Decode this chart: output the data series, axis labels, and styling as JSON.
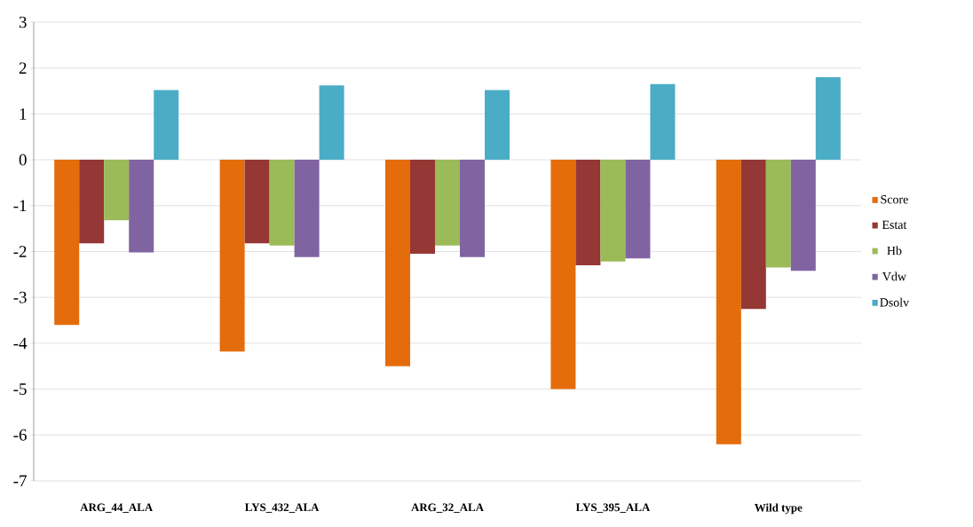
{
  "chart_data": {
    "type": "bar",
    "categories": [
      "ARG_44_ALA",
      "LYS_432_ALA",
      "ARG_32_ALA",
      "LYS_395_ALA",
      "Wild type"
    ],
    "series": [
      {
        "name": "Score",
        "color": "#e46c0a",
        "values": [
          -3.6,
          -4.18,
          -4.5,
          -5.0,
          -6.2
        ]
      },
      {
        "name": "Estat",
        "color": "#953735",
        "values": [
          -1.82,
          -1.82,
          -2.05,
          -2.3,
          -3.25
        ]
      },
      {
        "name": "Hb",
        "color": "#9bbb59",
        "values": [
          -1.32,
          -1.87,
          -1.87,
          -2.22,
          -2.35
        ]
      },
      {
        "name": "Vdw",
        "color": "#8064a2",
        "values": [
          -2.02,
          -2.12,
          -2.12,
          -2.15,
          -2.42
        ]
      },
      {
        "name": "Dsolv",
        "color": "#4bacc6",
        "values": [
          1.52,
          1.62,
          1.52,
          1.65,
          1.8
        ]
      }
    ],
    "ylim": [
      -7,
      3
    ],
    "yticks": [
      -7,
      -6,
      -5,
      -4,
      -3,
      -2,
      -1,
      0,
      1,
      2,
      3
    ],
    "grid": "y",
    "legend": "right"
  }
}
